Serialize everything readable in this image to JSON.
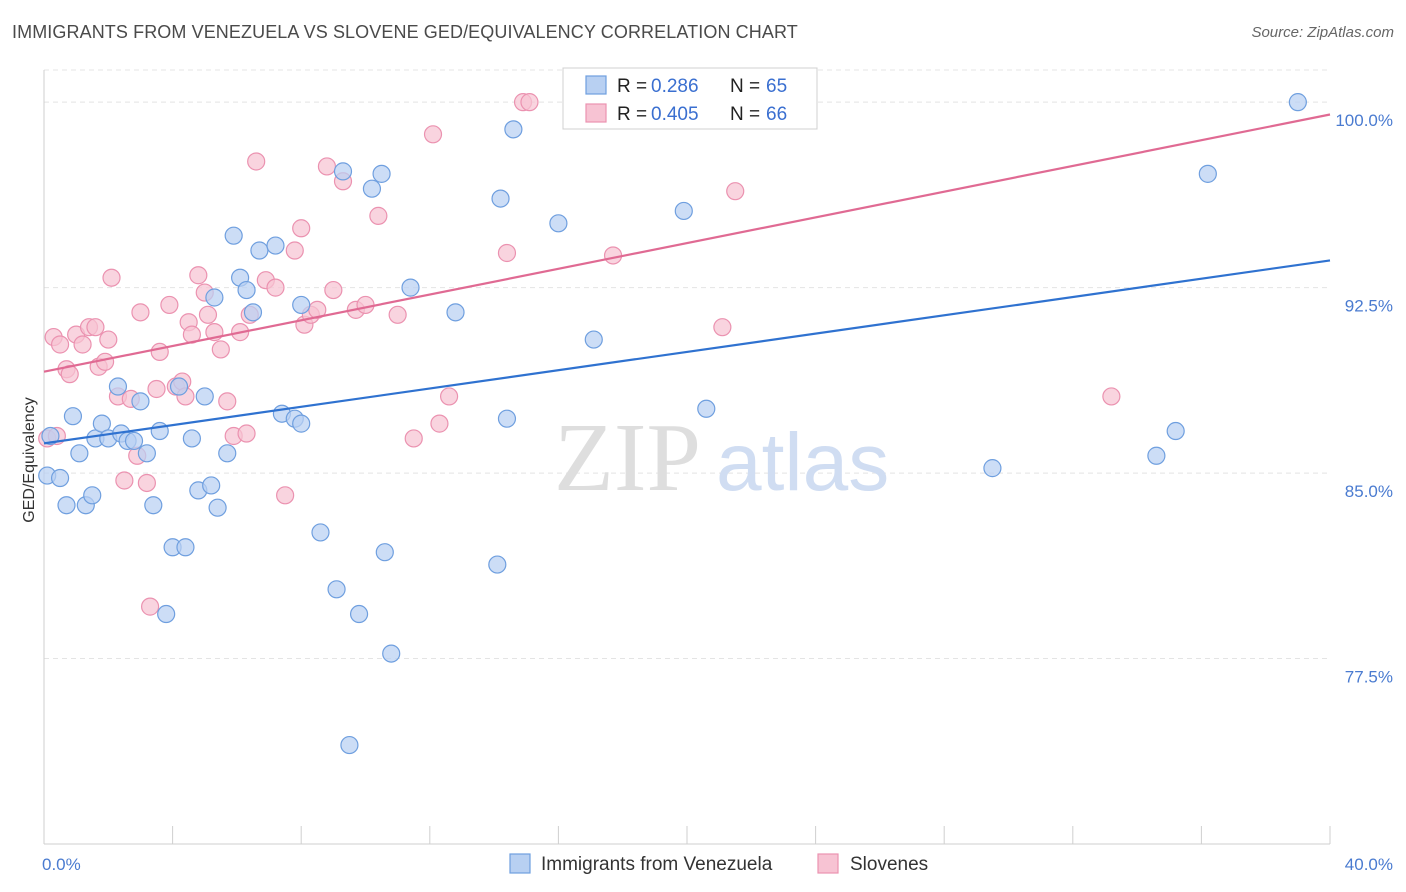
{
  "header": {
    "title": "IMMIGRANTS FROM VENEZUELA VS SLOVENE GED/EQUIVALENCY CORRELATION CHART",
    "source": "Source: ZipAtlas.com"
  },
  "watermark": {
    "zip": "ZIP",
    "atlas": "atlas"
  },
  "colors": {
    "blue_fill": "#b8d0f2",
    "blue_stroke": "#6f9fdf",
    "blue_line": "#2f72d0",
    "pink_fill": "#f7c3d3",
    "pink_stroke": "#eb92b0",
    "pink_line": "#e06a93",
    "tick_text": "#4a7bd0"
  },
  "legend": {
    "rows": [
      {
        "r_label": "R =",
        "r_value": "0.286",
        "n_label": "N =",
        "n_value": "65",
        "series": "blue"
      },
      {
        "r_label": "R =",
        "r_value": "0.405",
        "n_label": "N =",
        "n_value": "66",
        "series": "pink"
      }
    ]
  },
  "chart_data": {
    "type": "scatter",
    "title": "IMMIGRANTS FROM VENEZUELA VS SLOVENE GED/EQUIVALENCY CORRELATION CHART",
    "xlabel": "",
    "ylabel": "GED/Equivalency",
    "xlim": [
      0,
      40
    ],
    "ylim": [
      70,
      101.3
    ],
    "x_tick_labels": [
      "0.0%",
      "40.0%"
    ],
    "y_ticks": [
      77.5,
      85.0,
      92.5,
      100.0
    ],
    "y_tick_labels": [
      "77.5%",
      "85.0%",
      "92.5%",
      "100.0%"
    ],
    "grid": true,
    "legend_position": "bottom",
    "series": [
      {
        "name": "Immigrants from Venezuela",
        "color": "blue",
        "trend": {
          "x": [
            0,
            40
          ],
          "y": [
            86.2,
            93.6
          ]
        },
        "points": [
          [
            0.1,
            84.9
          ],
          [
            0.2,
            86.5
          ],
          [
            0.5,
            84.8
          ],
          [
            0.7,
            83.7
          ],
          [
            0.9,
            87.3
          ],
          [
            1.1,
            85.8
          ],
          [
            1.3,
            83.7
          ],
          [
            1.5,
            84.1
          ],
          [
            1.6,
            86.4
          ],
          [
            1.8,
            87.0
          ],
          [
            2.0,
            86.4
          ],
          [
            2.3,
            88.5
          ],
          [
            2.4,
            86.6
          ],
          [
            2.6,
            86.3
          ],
          [
            2.8,
            86.3
          ],
          [
            3.0,
            87.9
          ],
          [
            3.2,
            85.8
          ],
          [
            3.4,
            83.7
          ],
          [
            3.6,
            86.7
          ],
          [
            3.8,
            79.3
          ],
          [
            4.0,
            82.0
          ],
          [
            4.2,
            88.5
          ],
          [
            4.4,
            82.0
          ],
          [
            4.6,
            86.4
          ],
          [
            4.8,
            84.3
          ],
          [
            5.0,
            88.1
          ],
          [
            5.2,
            84.5
          ],
          [
            5.3,
            92.1
          ],
          [
            5.4,
            83.6
          ],
          [
            5.7,
            85.8
          ],
          [
            5.9,
            94.6
          ],
          [
            6.1,
            92.9
          ],
          [
            6.3,
            92.4
          ],
          [
            6.5,
            91.5
          ],
          [
            6.7,
            94.0
          ],
          [
            7.2,
            94.2
          ],
          [
            7.4,
            87.4
          ],
          [
            7.8,
            87.2
          ],
          [
            8.0,
            87.0
          ],
          [
            8.0,
            91.8
          ],
          [
            8.6,
            82.6
          ],
          [
            9.1,
            80.3
          ],
          [
            9.3,
            97.2
          ],
          [
            9.5,
            74.0
          ],
          [
            9.8,
            79.3
          ],
          [
            10.2,
            96.5
          ],
          [
            10.5,
            97.1
          ],
          [
            10.6,
            81.8
          ],
          [
            10.8,
            77.7
          ],
          [
            11.4,
            92.5
          ],
          [
            12.8,
            91.5
          ],
          [
            14.1,
            81.3
          ],
          [
            14.2,
            96.1
          ],
          [
            14.4,
            87.2
          ],
          [
            14.6,
            98.9
          ],
          [
            16.0,
            95.1
          ],
          [
            17.1,
            90.4
          ],
          [
            19.9,
            95.6
          ],
          [
            20.6,
            87.6
          ],
          [
            20.8,
            100.0
          ],
          [
            29.5,
            85.2
          ],
          [
            34.6,
            85.7
          ],
          [
            35.2,
            86.7
          ],
          [
            36.2,
            97.1
          ],
          [
            39.0,
            100.0
          ]
        ]
      },
      {
        "name": "Slovenes",
        "color": "pink",
        "trend": {
          "x": [
            0,
            40
          ],
          "y": [
            89.1,
            99.5
          ]
        },
        "points": [
          [
            0.1,
            86.4
          ],
          [
            0.3,
            90.5
          ],
          [
            0.5,
            90.2
          ],
          [
            0.7,
            89.2
          ],
          [
            0.8,
            89.0
          ],
          [
            1.0,
            90.6
          ],
          [
            1.2,
            90.2
          ],
          [
            1.4,
            90.9
          ],
          [
            1.6,
            90.9
          ],
          [
            1.7,
            89.3
          ],
          [
            1.9,
            89.5
          ],
          [
            2.0,
            90.4
          ],
          [
            2.1,
            92.9
          ],
          [
            2.3,
            88.1
          ],
          [
            2.5,
            84.7
          ],
          [
            2.7,
            88.0
          ],
          [
            2.9,
            85.7
          ],
          [
            3.0,
            91.5
          ],
          [
            3.2,
            84.6
          ],
          [
            3.3,
            79.6
          ],
          [
            3.5,
            88.4
          ],
          [
            3.6,
            89.9
          ],
          [
            3.9,
            91.8
          ],
          [
            4.1,
            88.5
          ],
          [
            4.3,
            88.7
          ],
          [
            4.4,
            88.1
          ],
          [
            4.5,
            91.1
          ],
          [
            4.6,
            90.6
          ],
          [
            4.8,
            93.0
          ],
          [
            5.0,
            92.3
          ],
          [
            5.1,
            91.4
          ],
          [
            5.3,
            90.7
          ],
          [
            5.5,
            90.0
          ],
          [
            5.7,
            87.9
          ],
          [
            5.9,
            86.5
          ],
          [
            6.1,
            90.7
          ],
          [
            6.3,
            86.6
          ],
          [
            6.4,
            91.4
          ],
          [
            6.6,
            97.6
          ],
          [
            6.9,
            92.8
          ],
          [
            7.2,
            92.5
          ],
          [
            7.5,
            84.1
          ],
          [
            7.8,
            94.0
          ],
          [
            8.0,
            94.9
          ],
          [
            8.1,
            91.0
          ],
          [
            8.3,
            91.4
          ],
          [
            8.5,
            91.6
          ],
          [
            8.8,
            97.4
          ],
          [
            9.0,
            92.4
          ],
          [
            9.3,
            96.8
          ],
          [
            9.7,
            91.6
          ],
          [
            10.0,
            91.8
          ],
          [
            10.4,
            95.4
          ],
          [
            11.0,
            91.4
          ],
          [
            11.5,
            86.4
          ],
          [
            12.1,
            98.7
          ],
          [
            12.3,
            87.0
          ],
          [
            12.6,
            88.1
          ],
          [
            14.4,
            93.9
          ],
          [
            14.9,
            100.0
          ],
          [
            15.1,
            100.0
          ],
          [
            17.7,
            93.8
          ],
          [
            21.1,
            90.9
          ],
          [
            21.5,
            96.4
          ],
          [
            33.2,
            88.1
          ],
          [
            0.4,
            86.5
          ]
        ]
      }
    ]
  }
}
